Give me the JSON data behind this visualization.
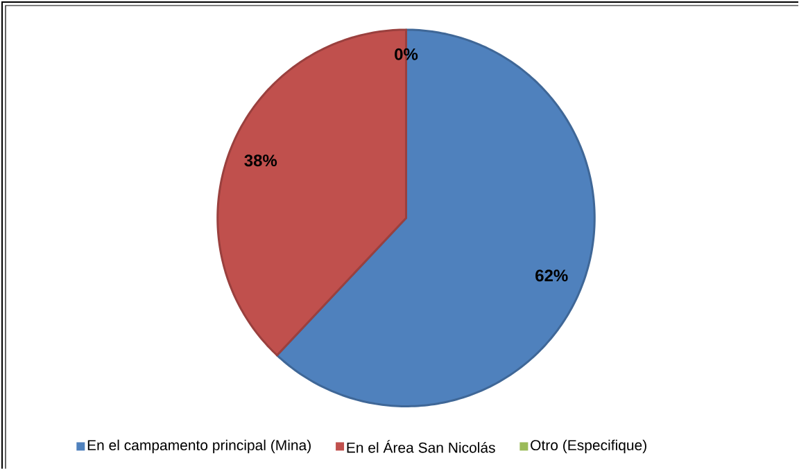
{
  "chart_data": {
    "type": "pie",
    "categories": [
      "En el campamento principal (Mina)",
      "En el Área San Nicolás",
      "Otro (Especifique)"
    ],
    "values": [
      62,
      38,
      0
    ],
    "colors": [
      "#4f81bd",
      "#c0504d",
      "#9bbb59"
    ],
    "value_labels": [
      "62%",
      "38%",
      "0%"
    ],
    "legend": "bottom"
  }
}
